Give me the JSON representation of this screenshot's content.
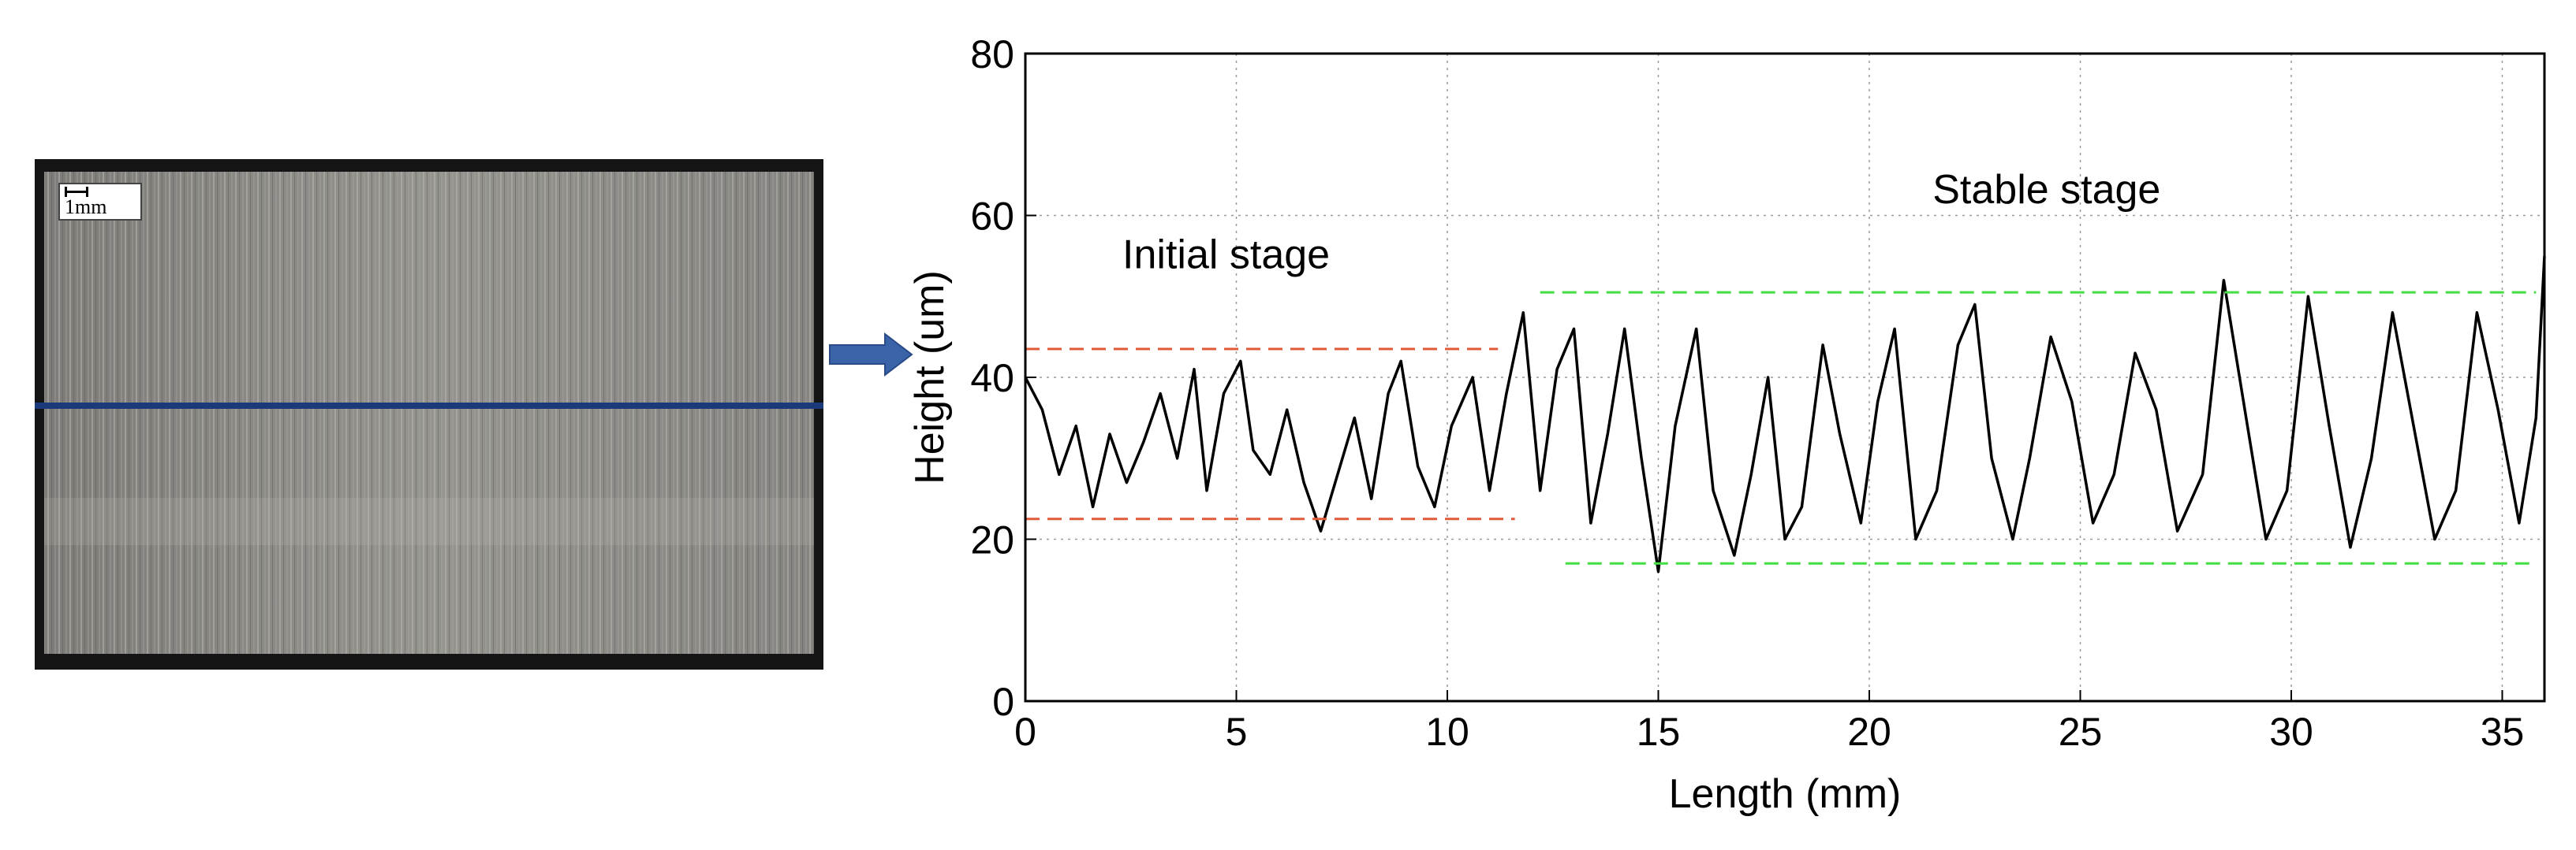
{
  "photo": {
    "scale_label": "1mm",
    "colors": {
      "frame": "#141414",
      "surface": "#8c8c8a",
      "profile_line": "#1b3a7a"
    }
  },
  "arrow": {
    "color": "#3a63a8"
  },
  "chart_data": {
    "type": "line",
    "title": "",
    "xlabel": "Length (mm)",
    "ylabel": "Height (um)",
    "xlim": [
      0,
      36
    ],
    "ylim": [
      0,
      80
    ],
    "xticks": [
      0,
      5,
      10,
      15,
      20,
      25,
      30,
      35
    ],
    "yticks": [
      0,
      20,
      40,
      60,
      80
    ],
    "grid": true,
    "series": [
      {
        "color": "#000000",
        "x": [
          0,
          0.4,
          0.8,
          1.2,
          1.6,
          2.0,
          2.4,
          2.8,
          3.2,
          3.6,
          4.0,
          4.3,
          4.7,
          5.1,
          5.4,
          5.8,
          6.2,
          6.6,
          7.0,
          7.4,
          7.8,
          8.2,
          8.6,
          8.9,
          9.3,
          9.7,
          10.1,
          10.6,
          11.0,
          11.4,
          11.8,
          12.2,
          12.6,
          13.0,
          13.4,
          13.8,
          14.2,
          14.6,
          15.0,
          15.4,
          15.9,
          16.3,
          16.8,
          17.2,
          17.6,
          18.0,
          18.4,
          18.9,
          19.3,
          19.8,
          20.2,
          20.6,
          21.1,
          21.6,
          22.1,
          22.5,
          22.9,
          23.4,
          23.8,
          24.3,
          24.8,
          25.3,
          25.8,
          26.3,
          26.8,
          27.3,
          27.9,
          28.4,
          28.9,
          29.4,
          29.9,
          30.4,
          30.9,
          31.4,
          31.9,
          32.4,
          32.9,
          33.4,
          33.9,
          34.4,
          34.9,
          35.4,
          35.8,
          36.0
        ],
        "y": [
          40,
          36,
          28,
          34,
          24,
          33,
          27,
          32,
          38,
          30,
          41,
          26,
          38,
          42,
          31,
          28,
          36,
          27,
          21,
          28,
          35,
          25,
          38,
          42,
          29,
          24,
          34,
          40,
          26,
          38,
          48,
          26,
          41,
          46,
          22,
          33,
          46,
          30,
          16,
          34,
          46,
          26,
          18,
          28,
          40,
          20,
          24,
          44,
          33,
          22,
          37,
          46,
          20,
          26,
          44,
          49,
          30,
          20,
          30,
          45,
          37,
          22,
          28,
          43,
          36,
          21,
          28,
          52,
          36,
          20,
          26,
          50,
          34,
          19,
          30,
          48,
          34,
          20,
          26,
          48,
          36,
          22,
          35,
          55
        ]
      },
      {
        "color": "#e05a3a",
        "dashed": true,
        "x": [
          0,
          11.2
        ],
        "y": [
          43.5,
          43.5
        ]
      },
      {
        "color": "#e05a3a",
        "dashed": true,
        "x": [
          0,
          11.6
        ],
        "y": [
          22.5,
          22.5
        ]
      },
      {
        "color": "#44dd44",
        "dashed": true,
        "x": [
          12.2,
          35.8
        ],
        "y": [
          50.5,
          50.5
        ]
      },
      {
        "color": "#44dd44",
        "dashed": true,
        "x": [
          12.8,
          35.8
        ],
        "y": [
          17,
          17
        ]
      }
    ],
    "annotations": [
      {
        "text": "Initial stage",
        "x": 2.3,
        "y": 53.5
      },
      {
        "text": "Stable stage",
        "x": 21.5,
        "y": 61.5
      }
    ]
  }
}
